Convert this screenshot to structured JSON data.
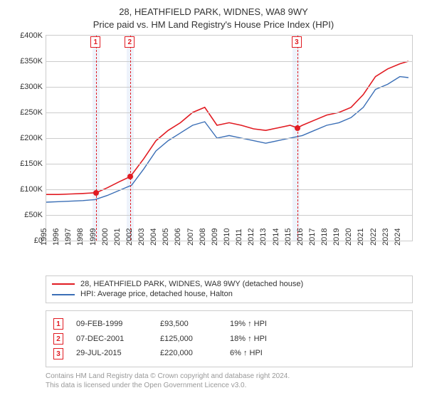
{
  "title": {
    "line1": "28, HEATHFIELD PARK, WIDNES, WA8 9WY",
    "line2": "Price paid vs. HM Land Registry's House Price Index (HPI)"
  },
  "chart": {
    "type": "line",
    "x_start_year": 1995,
    "x_end_year": 2025,
    "x_tick_years": [
      1995,
      1996,
      1997,
      1998,
      1999,
      2000,
      2001,
      2002,
      2003,
      2004,
      2005,
      2006,
      2007,
      2008,
      2009,
      2010,
      2011,
      2012,
      2013,
      2014,
      2015,
      2016,
      2017,
      2018,
      2019,
      2020,
      2021,
      2022,
      2023,
      2024
    ],
    "y_min": 0,
    "y_max": 400000,
    "y_tick_step": 50000,
    "y_tick_labels": [
      "£0",
      "£50K",
      "£100K",
      "£150K",
      "£200K",
      "£250K",
      "£300K",
      "£350K",
      "£400K"
    ],
    "grid_color": "#cccccc",
    "background_color": "#ffffff",
    "band_color": "#eef3fb",
    "band_years": [
      [
        1998.8,
        1999.4
      ],
      [
        2001.6,
        2002.2
      ],
      [
        2015.2,
        2015.8
      ]
    ],
    "series": [
      {
        "id": "price_paid",
        "label": "28, HEATHFIELD PARK, WIDNES, WA8 9WY (detached house)",
        "color": "#e11b22",
        "line_width": 1.6,
        "points": [
          [
            1995.0,
            90000
          ],
          [
            1996.0,
            90000
          ],
          [
            1997.0,
            91000
          ],
          [
            1998.0,
            92000
          ],
          [
            1999.1,
            93500
          ],
          [
            2000.0,
            103000
          ],
          [
            2001.0,
            115000
          ],
          [
            2001.9,
            125000
          ],
          [
            2003.0,
            160000
          ],
          [
            2004.0,
            195000
          ],
          [
            2005.0,
            215000
          ],
          [
            2006.0,
            230000
          ],
          [
            2007.0,
            250000
          ],
          [
            2008.0,
            260000
          ],
          [
            2009.0,
            225000
          ],
          [
            2010.0,
            230000
          ],
          [
            2011.0,
            225000
          ],
          [
            2012.0,
            218000
          ],
          [
            2013.0,
            215000
          ],
          [
            2014.0,
            220000
          ],
          [
            2015.0,
            225000
          ],
          [
            2015.6,
            220000
          ],
          [
            2016.0,
            225000
          ],
          [
            2017.0,
            235000
          ],
          [
            2018.0,
            245000
          ],
          [
            2019.0,
            250000
          ],
          [
            2020.0,
            260000
          ],
          [
            2021.0,
            285000
          ],
          [
            2022.0,
            320000
          ],
          [
            2023.0,
            335000
          ],
          [
            2024.0,
            345000
          ],
          [
            2024.7,
            350000
          ]
        ]
      },
      {
        "id": "hpi",
        "label": "HPI: Average price, detached house, Halton",
        "color": "#3b6fb6",
        "line_width": 1.4,
        "points": [
          [
            1995.0,
            75000
          ],
          [
            1996.0,
            76000
          ],
          [
            1997.0,
            77000
          ],
          [
            1998.0,
            78000
          ],
          [
            1999.0,
            80000
          ],
          [
            2000.0,
            88000
          ],
          [
            2001.0,
            98000
          ],
          [
            2002.0,
            108000
          ],
          [
            2003.0,
            140000
          ],
          [
            2004.0,
            175000
          ],
          [
            2005.0,
            195000
          ],
          [
            2006.0,
            210000
          ],
          [
            2007.0,
            225000
          ],
          [
            2008.0,
            232000
          ],
          [
            2009.0,
            200000
          ],
          [
            2010.0,
            205000
          ],
          [
            2011.0,
            200000
          ],
          [
            2012.0,
            195000
          ],
          [
            2013.0,
            190000
          ],
          [
            2014.0,
            195000
          ],
          [
            2015.0,
            200000
          ],
          [
            2016.0,
            205000
          ],
          [
            2017.0,
            215000
          ],
          [
            2018.0,
            225000
          ],
          [
            2019.0,
            230000
          ],
          [
            2020.0,
            240000
          ],
          [
            2021.0,
            260000
          ],
          [
            2022.0,
            295000
          ],
          [
            2023.0,
            305000
          ],
          [
            2024.0,
            320000
          ],
          [
            2024.7,
            318000
          ]
        ]
      }
    ],
    "markers": [
      {
        "n": "1",
        "year": 1999.1,
        "value": 93500
      },
      {
        "n": "2",
        "year": 2001.9,
        "value": 125000
      },
      {
        "n": "3",
        "year": 2015.6,
        "value": 220000
      }
    ],
    "marker_color": "#e11b22",
    "marker_dash": "4,4",
    "marker_radius": 4
  },
  "legend": {
    "items": [
      {
        "color": "#e11b22",
        "label": "28, HEATHFIELD PARK, WIDNES, WA8 9WY (detached house)"
      },
      {
        "color": "#3b6fb6",
        "label": "HPI: Average price, detached house, Halton"
      }
    ]
  },
  "transactions": [
    {
      "n": "1",
      "date": "09-FEB-1999",
      "price": "£93,500",
      "delta": "19% ↑ HPI"
    },
    {
      "n": "2",
      "date": "07-DEC-2001",
      "price": "£125,000",
      "delta": "18% ↑ HPI"
    },
    {
      "n": "3",
      "date": "29-JUL-2015",
      "price": "£220,000",
      "delta": "6% ↑ HPI"
    }
  ],
  "fineprint": {
    "line1": "Contains HM Land Registry data © Crown copyright and database right 2024.",
    "line2": "This data is licensed under the Open Government Licence v3.0."
  },
  "style": {
    "marker_box_border": "#e11b22",
    "marker_box_text": "#e11b22",
    "fine_color": "#999999"
  }
}
